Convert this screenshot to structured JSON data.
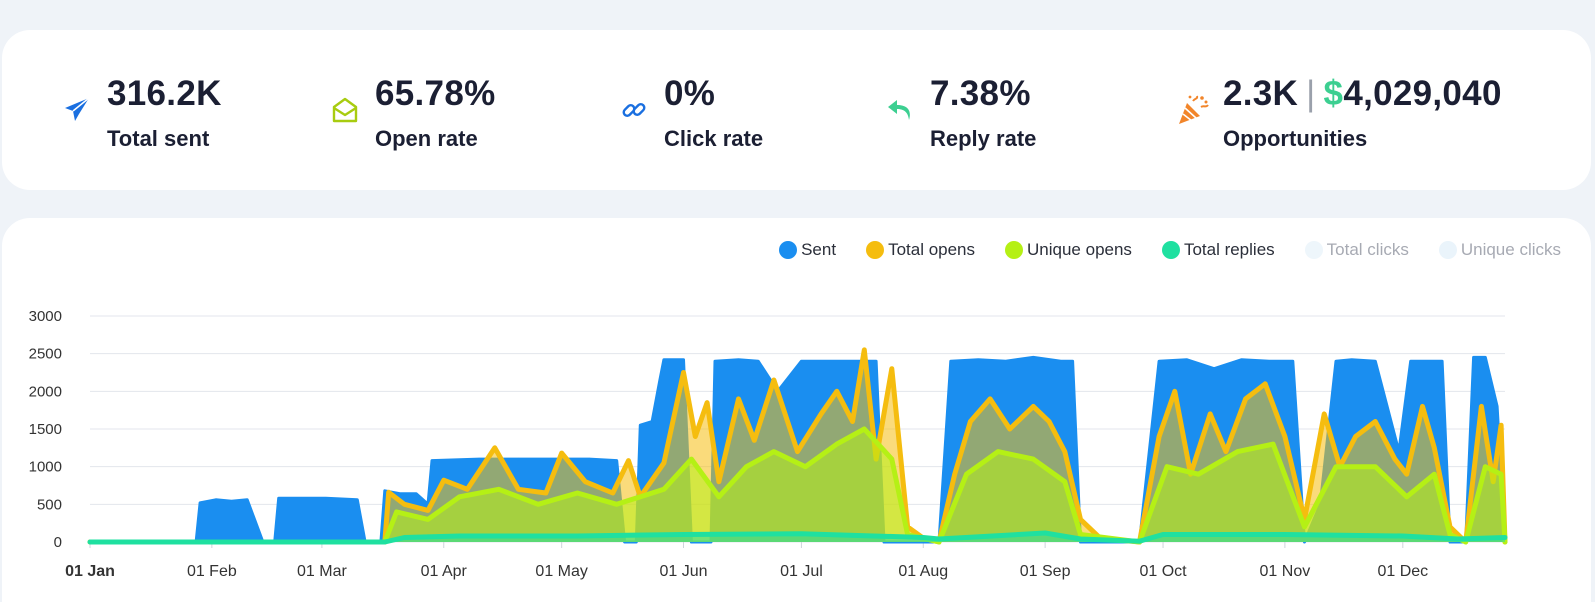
{
  "stats": [
    {
      "icon": "paper-plane-icon",
      "value": "316.2K",
      "label": "Total sent",
      "color": "#1a6fe0"
    },
    {
      "icon": "envelope-open-icon",
      "value": "65.78%",
      "label": "Open rate",
      "color": "#a8cc10"
    },
    {
      "icon": "link-icon",
      "value": "0%",
      "label": "Click rate",
      "color": "#1a6fe0"
    },
    {
      "icon": "reply-arrow-icon",
      "value": "7.38%",
      "label": "Reply rate",
      "color": "#3ccf91"
    }
  ],
  "opportunities": {
    "icon": "party-popper-icon",
    "count": "2.3K",
    "separator": "|",
    "currency": "$",
    "amount": "4,029,040",
    "label": "Opportunities",
    "color": "#f2852a"
  },
  "chart_data": {
    "type": "area",
    "title": "",
    "xlabel": "",
    "ylabel": "",
    "ylim": [
      0,
      3000
    ],
    "yticks": [
      "0",
      "500",
      "1000",
      "1500",
      "2000",
      "2500",
      "3000"
    ],
    "x_range": [
      "01 Jan",
      "27 Dec"
    ],
    "xtick_labels": [
      "01 Jan",
      "01 Feb",
      "01 Mar",
      "01 Apr",
      "01 May",
      "01 Jun",
      "01 Jul",
      "01 Aug",
      "01 Sep",
      "01 Oct",
      "01 Nov",
      "01 Dec"
    ],
    "grid": true,
    "legend_position": "top-right",
    "legend": [
      {
        "name": "Sent",
        "color": "#1a8ef0",
        "active": true
      },
      {
        "name": "Total opens",
        "color": "#f5bd0f",
        "active": true
      },
      {
        "name": "Unique opens",
        "color": "#b5f015",
        "active": true
      },
      {
        "name": "Total replies",
        "color": "#1fe0a0",
        "active": true
      },
      {
        "name": "Total clicks",
        "color": "#eef6fb",
        "active": false
      },
      {
        "name": "Unique clicks",
        "color": "#eaf4fb",
        "active": false
      }
    ],
    "series": [
      {
        "name": "Sent",
        "color": "#1a8ef0",
        "points": [
          [
            "01 Jan",
            0
          ],
          [
            "28 Jan",
            0
          ],
          [
            "29 Jan",
            520
          ],
          [
            "02 Feb",
            560
          ],
          [
            "06 Feb",
            540
          ],
          [
            "10 Feb",
            560
          ],
          [
            "14 Feb",
            0
          ],
          [
            "17 Feb",
            0
          ],
          [
            "18 Feb",
            580
          ],
          [
            "24 Feb",
            580
          ],
          [
            "02 Mar",
            580
          ],
          [
            "10 Mar",
            560
          ],
          [
            "12 Mar",
            0
          ],
          [
            "16 Mar",
            0
          ],
          [
            "17 Mar",
            680
          ],
          [
            "21 Mar",
            640
          ],
          [
            "25 Mar",
            640
          ],
          [
            "28 Mar",
            500
          ],
          [
            "29 Mar",
            1080
          ],
          [
            "10 Apr",
            1100
          ],
          [
            "20 Apr",
            1100
          ],
          [
            "01 May",
            1100
          ],
          [
            "08 May",
            1100
          ],
          [
            "15 May",
            1080
          ],
          [
            "17 May",
            0
          ],
          [
            "20 May",
            0
          ],
          [
            "21 May",
            1550
          ],
          [
            "24 May",
            1600
          ],
          [
            "26 May",
            2150
          ],
          [
            "27 May",
            2420
          ],
          [
            "01 Jun",
            2420
          ],
          [
            "03 Jun",
            0
          ],
          [
            "08 Jun",
            0
          ],
          [
            "09 Jun",
            2400
          ],
          [
            "15 Jun",
            2420
          ],
          [
            "20 Jun",
            2400
          ],
          [
            "25 Jun",
            2000
          ],
          [
            "01 Jul",
            2400
          ],
          [
            "07 Jul",
            2400
          ],
          [
            "12 Jul",
            2400
          ],
          [
            "18 Jul",
            2400
          ],
          [
            "20 Jul",
            2400
          ],
          [
            "22 Jul",
            0
          ],
          [
            "30 Jul",
            0
          ],
          [
            "05 Aug",
            0
          ],
          [
            "08 Aug",
            2400
          ],
          [
            "15 Aug",
            2420
          ],
          [
            "22 Aug",
            2400
          ],
          [
            "29 Aug",
            2450
          ],
          [
            "05 Sep",
            2400
          ],
          [
            "08 Sep",
            2400
          ],
          [
            "10 Sep",
            0
          ],
          [
            "20 Sep",
            0
          ],
          [
            "25 Sep",
            0
          ],
          [
            "30 Sep",
            2400
          ],
          [
            "07 Oct",
            2420
          ],
          [
            "14 Oct",
            2300
          ],
          [
            "21 Oct",
            2420
          ],
          [
            "28 Oct",
            2400
          ],
          [
            "03 Nov",
            2400
          ],
          [
            "06 Nov",
            0
          ],
          [
            "10 Nov",
            500
          ],
          [
            "14 Nov",
            2400
          ],
          [
            "18 Nov",
            2420
          ],
          [
            "24 Nov",
            2400
          ],
          [
            "30 Nov",
            1200
          ],
          [
            "03 Dec",
            2400
          ],
          [
            "07 Dec",
            2400
          ],
          [
            "11 Dec",
            2400
          ],
          [
            "13 Dec",
            0
          ],
          [
            "17 Dec",
            0
          ],
          [
            "19 Dec",
            2450
          ],
          [
            "22 Dec",
            2450
          ],
          [
            "25 Dec",
            1800
          ],
          [
            "27 Dec",
            0
          ]
        ]
      },
      {
        "name": "Total opens",
        "color": "#f5bd0f",
        "points": [
          [
            "01 Jan",
            0
          ],
          [
            "17 Mar",
            0
          ],
          [
            "18 Mar",
            660
          ],
          [
            "22 Mar",
            500
          ],
          [
            "28 Mar",
            420
          ],
          [
            "01 Apr",
            820
          ],
          [
            "07 Apr",
            700
          ],
          [
            "14 Apr",
            1250
          ],
          [
            "20 Apr",
            700
          ],
          [
            "27 Apr",
            650
          ],
          [
            "01 May",
            1180
          ],
          [
            "07 May",
            800
          ],
          [
            "14 May",
            650
          ],
          [
            "18 May",
            1080
          ],
          [
            "21 May",
            600
          ],
          [
            "27 May",
            1050
          ],
          [
            "01 Jun",
            2250
          ],
          [
            "04 Jun",
            1400
          ],
          [
            "07 Jun",
            1850
          ],
          [
            "10 Jun",
            800
          ],
          [
            "15 Jun",
            1900
          ],
          [
            "19 Jun",
            1350
          ],
          [
            "24 Jun",
            2150
          ],
          [
            "30 Jun",
            1200
          ],
          [
            "06 Jul",
            1700
          ],
          [
            "10 Jul",
            2000
          ],
          [
            "14 Jul",
            1600
          ],
          [
            "17 Jul",
            2550
          ],
          [
            "20 Jul",
            1100
          ],
          [
            "24 Jul",
            2300
          ],
          [
            "28 Jul",
            200
          ],
          [
            "01 Aug",
            50
          ],
          [
            "05 Aug",
            0
          ],
          [
            "09 Aug",
            900
          ],
          [
            "13 Aug",
            1600
          ],
          [
            "18 Aug",
            1900
          ],
          [
            "23 Aug",
            1500
          ],
          [
            "29 Aug",
            1800
          ],
          [
            "02 Sep",
            1600
          ],
          [
            "06 Sep",
            1200
          ],
          [
            "10 Sep",
            300
          ],
          [
            "15 Sep",
            50
          ],
          [
            "25 Sep",
            0
          ],
          [
            "30 Sep",
            1400
          ],
          [
            "04 Oct",
            2000
          ],
          [
            "08 Oct",
            900
          ],
          [
            "13 Oct",
            1700
          ],
          [
            "17 Oct",
            1200
          ],
          [
            "22 Oct",
            1900
          ],
          [
            "27 Oct",
            2100
          ],
          [
            "01 Nov",
            1400
          ],
          [
            "06 Nov",
            300
          ],
          [
            "11 Nov",
            1700
          ],
          [
            "15 Nov",
            1000
          ],
          [
            "19 Nov",
            1400
          ],
          [
            "24 Nov",
            1600
          ],
          [
            "29 Nov",
            1100
          ],
          [
            "02 Dec",
            900
          ],
          [
            "06 Dec",
            1800
          ],
          [
            "09 Dec",
            1250
          ],
          [
            "13 Dec",
            200
          ],
          [
            "17 Dec",
            0
          ],
          [
            "21 Dec",
            1800
          ],
          [
            "24 Dec",
            800
          ],
          [
            "26 Dec",
            1550
          ],
          [
            "27 Dec",
            0
          ]
        ]
      },
      {
        "name": "Unique opens",
        "color": "#b5f015",
        "points": [
          [
            "01 Jan",
            0
          ],
          [
            "17 Mar",
            0
          ],
          [
            "20 Mar",
            400
          ],
          [
            "28 Mar",
            300
          ],
          [
            "05 Apr",
            600
          ],
          [
            "15 Apr",
            700
          ],
          [
            "25 Apr",
            500
          ],
          [
            "05 May",
            650
          ],
          [
            "15 May",
            500
          ],
          [
            "27 May",
            700
          ],
          [
            "03 Jun",
            1100
          ],
          [
            "10 Jun",
            600
          ],
          [
            "17 Jun",
            1000
          ],
          [
            "24 Jun",
            1200
          ],
          [
            "02 Jul",
            1000
          ],
          [
            "10 Jul",
            1300
          ],
          [
            "17 Jul",
            1500
          ],
          [
            "24 Jul",
            1100
          ],
          [
            "28 Jul",
            100
          ],
          [
            "05 Aug",
            0
          ],
          [
            "12 Aug",
            900
          ],
          [
            "20 Aug",
            1200
          ],
          [
            "29 Aug",
            1100
          ],
          [
            "06 Sep",
            800
          ],
          [
            "10 Sep",
            100
          ],
          [
            "25 Sep",
            0
          ],
          [
            "02 Oct",
            1000
          ],
          [
            "10 Oct",
            900
          ],
          [
            "20 Oct",
            1200
          ],
          [
            "29 Oct",
            1300
          ],
          [
            "06 Nov",
            200
          ],
          [
            "14 Nov",
            1000
          ],
          [
            "24 Nov",
            1000
          ],
          [
            "02 Dec",
            600
          ],
          [
            "09 Dec",
            900
          ],
          [
            "13 Dec",
            100
          ],
          [
            "17 Dec",
            0
          ],
          [
            "22 Dec",
            1000
          ],
          [
            "26 Dec",
            900
          ],
          [
            "27 Dec",
            0
          ]
        ]
      },
      {
        "name": "Total replies",
        "color": "#1fe0a0",
        "points": [
          [
            "01 Jan",
            0
          ],
          [
            "17 Mar",
            0
          ],
          [
            "22 Mar",
            60
          ],
          [
            "05 Apr",
            80
          ],
          [
            "05 May",
            80
          ],
          [
            "01 Jun",
            100
          ],
          [
            "01 Jul",
            110
          ],
          [
            "01 Aug",
            60
          ],
          [
            "05 Aug",
            40
          ],
          [
            "01 Sep",
            120
          ],
          [
            "10 Sep",
            40
          ],
          [
            "25 Sep",
            10
          ],
          [
            "01 Oct",
            100
          ],
          [
            "01 Nov",
            100
          ],
          [
            "01 Dec",
            80
          ],
          [
            "15 Dec",
            40
          ],
          [
            "27 Dec",
            60
          ]
        ]
      }
    ]
  }
}
